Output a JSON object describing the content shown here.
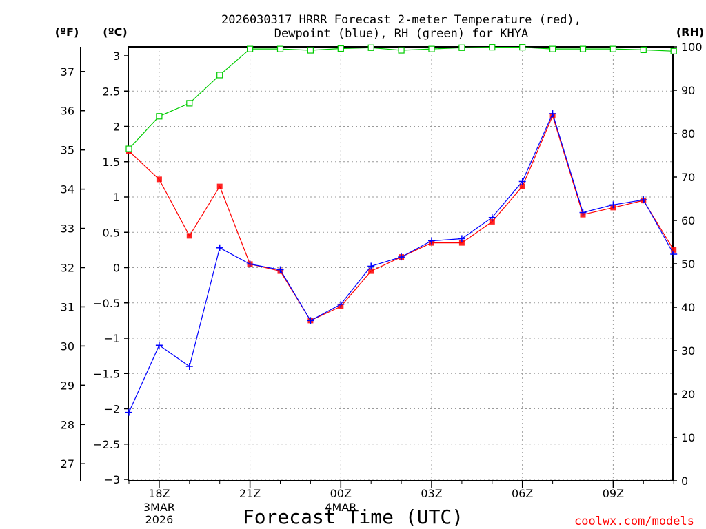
{
  "chart_data": {
    "type": "line",
    "title": "2026030317 HRRR Forecast 2-meter Temperature (red),",
    "subtitle": "Dewpoint (blue), RH (green) for KHYA",
    "xlabel": "Forecast Time (UTC)",
    "credit": "coolwx.com/models",
    "units": {
      "fahrenheit": "(ºF)",
      "celsius": "(ºC)",
      "rh": "(RH)"
    },
    "x": [
      "17Z",
      "18Z",
      "19Z",
      "20Z",
      "21Z",
      "22Z",
      "23Z",
      "00Z",
      "01Z",
      "02Z",
      "03Z",
      "04Z",
      "05Z",
      "06Z",
      "07Z",
      "08Z",
      "09Z",
      "10Z",
      "11Z"
    ],
    "x_tick_labels": [
      {
        "label": "18Z",
        "sub": [
          "3MAR",
          "2026"
        ]
      },
      {
        "label": "21Z",
        "sub": []
      },
      {
        "label": "00Z",
        "sub": [
          "4MAR"
        ]
      },
      {
        "label": "03Z",
        "sub": []
      },
      {
        "label": "06Z",
        "sub": []
      },
      {
        "label": "09Z",
        "sub": []
      }
    ],
    "celsius_ticks": [
      "3",
      "2.5",
      "2",
      "1.5",
      "1",
      "0.5",
      "0",
      "−0.5",
      "−1",
      "−1.5",
      "−2",
      "−2.5",
      "−3"
    ],
    "fahrenheit_ticks": [
      "37",
      "36",
      "35",
      "34",
      "33",
      "32",
      "31",
      "30",
      "29",
      "28",
      "27"
    ],
    "rh_ticks": [
      "100",
      "90",
      "80",
      "70",
      "60",
      "50",
      "40",
      "30",
      "20",
      "10",
      "0"
    ],
    "ylim_celsius": [
      -3,
      3
    ],
    "ylim_rh": [
      0,
      100
    ],
    "grid": true,
    "series": [
      {
        "name": "Temperature",
        "color": "#ff0000",
        "marker": "filled-square",
        "axis": "celsius",
        "values": [
          1.65,
          1.25,
          0.45,
          1.15,
          0.05,
          -0.05,
          -0.75,
          -0.55,
          -0.05,
          0.15,
          0.35,
          0.35,
          0.65,
          1.15,
          2.15,
          0.75,
          0.85,
          0.95,
          0.25
        ]
      },
      {
        "name": "Dewpoint",
        "color": "#0000ff",
        "marker": "plus",
        "axis": "celsius",
        "values": [
          -2.05,
          -1.1,
          -1.4,
          0.28,
          0.05,
          -0.03,
          -0.75,
          -0.52,
          0.02,
          0.15,
          0.38,
          0.41,
          0.71,
          1.22,
          2.18,
          0.78,
          0.89,
          0.96,
          0.19
        ]
      },
      {
        "name": "RH",
        "color": "#00cc00",
        "marker": "open-square",
        "axis": "rh",
        "values": [
          76.5,
          84,
          87,
          93.5,
          99.5,
          99.5,
          99.2,
          99.6,
          99.8,
          99.2,
          99.5,
          99.8,
          99.9,
          99.9,
          99.5,
          99.5,
          99.5,
          99.3,
          99
        ]
      }
    ]
  }
}
